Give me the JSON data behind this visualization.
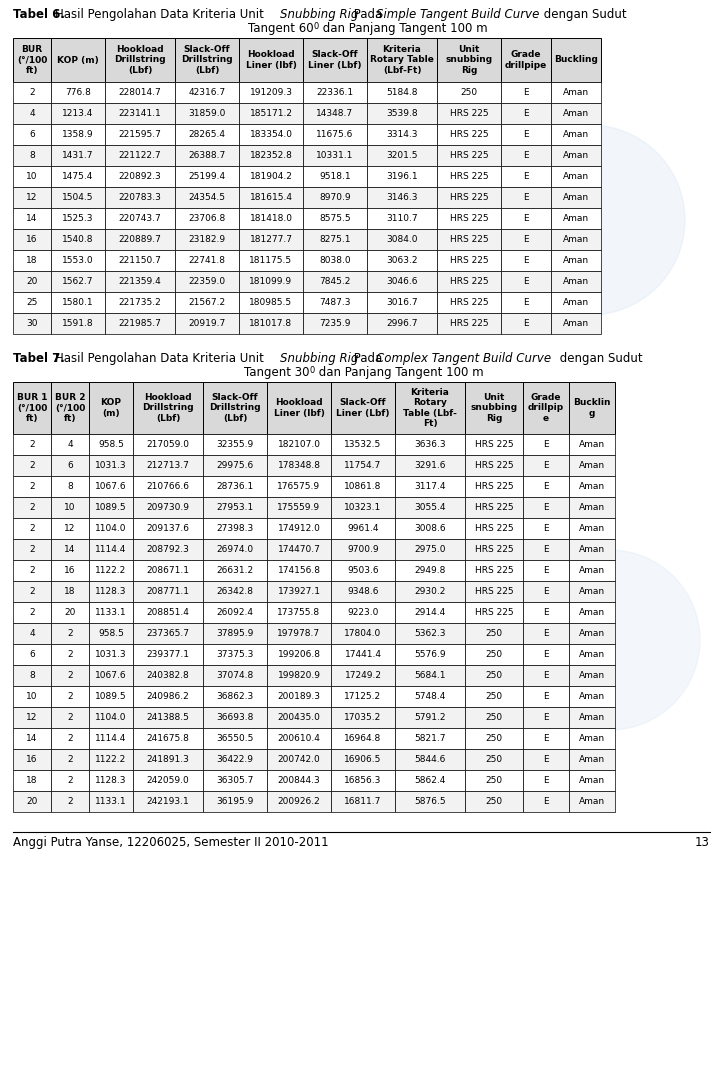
{
  "page_bg": "#ffffff",
  "table6_headers": [
    "BUR\n(°/100\nft)",
    "KOP (m)",
    "Hookload\nDrillstring\n(Lbf)",
    "Slack-Off\nDrillstring\n(Lbf)",
    "Hookload\nLiner (lbf)",
    "Slack-Off\nLiner (Lbf)",
    "Kriteria\nRotary Table\n(Lbf-Ft)",
    "Unit\nsnubbing\nRig",
    "Grade\ndrillpipe",
    "Buckling"
  ],
  "table6_data": [
    [
      "2",
      "776.8",
      "228014.7",
      "42316.7",
      "191209.3",
      "22336.1",
      "5184.8",
      "250",
      "E",
      "Aman"
    ],
    [
      "4",
      "1213.4",
      "223141.1",
      "31859.0",
      "185171.2",
      "14348.7",
      "3539.8",
      "HRS 225",
      "E",
      "Aman"
    ],
    [
      "6",
      "1358.9",
      "221595.7",
      "28265.4",
      "183354.0",
      "11675.6",
      "3314.3",
      "HRS 225",
      "E",
      "Aman"
    ],
    [
      "8",
      "1431.7",
      "221122.7",
      "26388.7",
      "182352.8",
      "10331.1",
      "3201.5",
      "HRS 225",
      "E",
      "Aman"
    ],
    [
      "10",
      "1475.4",
      "220892.3",
      "25199.4",
      "181904.2",
      "9518.1",
      "3196.1",
      "HRS 225",
      "E",
      "Aman"
    ],
    [
      "12",
      "1504.5",
      "220783.3",
      "24354.5",
      "181615.4",
      "8970.9",
      "3146.3",
      "HRS 225",
      "E",
      "Aman"
    ],
    [
      "14",
      "1525.3",
      "220743.7",
      "23706.8",
      "181418.0",
      "8575.5",
      "3110.7",
      "HRS 225",
      "E",
      "Aman"
    ],
    [
      "16",
      "1540.8",
      "220889.7",
      "23182.9",
      "181277.7",
      "8275.1",
      "3084.0",
      "HRS 225",
      "E",
      "Aman"
    ],
    [
      "18",
      "1553.0",
      "221150.7",
      "22741.8",
      "181175.5",
      "8038.0",
      "3063.2",
      "HRS 225",
      "E",
      "Aman"
    ],
    [
      "20",
      "1562.7",
      "221359.4",
      "22359.0",
      "181099.9",
      "7845.2",
      "3046.6",
      "HRS 225",
      "E",
      "Aman"
    ],
    [
      "25",
      "1580.1",
      "221735.2",
      "21567.2",
      "180985.5",
      "7487.3",
      "3016.7",
      "HRS 225",
      "E",
      "Aman"
    ],
    [
      "30",
      "1591.8",
      "221985.7",
      "20919.7",
      "181017.8",
      "7235.9",
      "2996.7",
      "HRS 225",
      "E",
      "Aman"
    ]
  ],
  "table6_col_widths": [
    38,
    54,
    70,
    64,
    64,
    64,
    70,
    64,
    50,
    50
  ],
  "table7_headers": [
    "BUR 1\n(°/100\nft)",
    "BUR 2\n(°/100\nft)",
    "KOP\n(m)",
    "Hookload\nDrillstring\n(Lbf)",
    "Slack-Off\nDrillstring\n(Lbf)",
    "Hookload\nLiner (lbf)",
    "Slack-Off\nLiner (Lbf)",
    "Kriteria\nRotary\nTable (Lbf-\nFt)",
    "Unit\nsnubbing\nRig",
    "Grade\ndrillpip\ne",
    "Bucklin\ng"
  ],
  "table7_data": [
    [
      "2",
      "4",
      "958.5",
      "217059.0",
      "32355.9",
      "182107.0",
      "13532.5",
      "3636.3",
      "HRS 225",
      "E",
      "Aman"
    ],
    [
      "2",
      "6",
      "1031.3",
      "212713.7",
      "29975.6",
      "178348.8",
      "11754.7",
      "3291.6",
      "HRS 225",
      "E",
      "Aman"
    ],
    [
      "2",
      "8",
      "1067.6",
      "210766.6",
      "28736.1",
      "176575.9",
      "10861.8",
      "3117.4",
      "HRS 225",
      "E",
      "Aman"
    ],
    [
      "2",
      "10",
      "1089.5",
      "209730.9",
      "27953.1",
      "175559.9",
      "10323.1",
      "3055.4",
      "HRS 225",
      "E",
      "Aman"
    ],
    [
      "2",
      "12",
      "1104.0",
      "209137.6",
      "27398.3",
      "174912.0",
      "9961.4",
      "3008.6",
      "HRS 225",
      "E",
      "Aman"
    ],
    [
      "2",
      "14",
      "1114.4",
      "208792.3",
      "26974.0",
      "174470.7",
      "9700.9",
      "2975.0",
      "HRS 225",
      "E",
      "Aman"
    ],
    [
      "2",
      "16",
      "1122.2",
      "208671.1",
      "26631.2",
      "174156.8",
      "9503.6",
      "2949.8",
      "HRS 225",
      "E",
      "Aman"
    ],
    [
      "2",
      "18",
      "1128.3",
      "208771.1",
      "26342.8",
      "173927.1",
      "9348.6",
      "2930.2",
      "HRS 225",
      "E",
      "Aman"
    ],
    [
      "2",
      "20",
      "1133.1",
      "208851.4",
      "26092.4",
      "173755.8",
      "9223.0",
      "2914.4",
      "HRS 225",
      "E",
      "Aman"
    ],
    [
      "4",
      "2",
      "958.5",
      "237365.7",
      "37895.9",
      "197978.7",
      "17804.0",
      "5362.3",
      "250",
      "E",
      "Aman"
    ],
    [
      "6",
      "2",
      "1031.3",
      "239377.1",
      "37375.3",
      "199206.8",
      "17441.4",
      "5576.9",
      "250",
      "E",
      "Aman"
    ],
    [
      "8",
      "2",
      "1067.6",
      "240382.8",
      "37074.8",
      "199820.9",
      "17249.2",
      "5684.1",
      "250",
      "E",
      "Aman"
    ],
    [
      "10",
      "2",
      "1089.5",
      "240986.2",
      "36862.3",
      "200189.3",
      "17125.2",
      "5748.4",
      "250",
      "E",
      "Aman"
    ],
    [
      "12",
      "2",
      "1104.0",
      "241388.5",
      "36693.8",
      "200435.0",
      "17035.2",
      "5791.2",
      "250",
      "E",
      "Aman"
    ],
    [
      "14",
      "2",
      "1114.4",
      "241675.8",
      "36550.5",
      "200610.4",
      "16964.8",
      "5821.7",
      "250",
      "E",
      "Aman"
    ],
    [
      "16",
      "2",
      "1122.2",
      "241891.3",
      "36422.9",
      "200742.0",
      "16906.5",
      "5844.6",
      "250",
      "E",
      "Aman"
    ],
    [
      "18",
      "2",
      "1128.3",
      "242059.0",
      "36305.7",
      "200844.3",
      "16856.3",
      "5862.4",
      "250",
      "E",
      "Aman"
    ],
    [
      "20",
      "2",
      "1133.1",
      "242193.1",
      "36195.9",
      "200926.2",
      "16811.7",
      "5876.5",
      "250",
      "E",
      "Aman"
    ]
  ],
  "table7_col_widths": [
    38,
    38,
    44,
    70,
    64,
    64,
    64,
    70,
    58,
    46,
    46
  ],
  "footer_text": "Anggi Putra Yanse, 12206025, Semester II 2010-2011",
  "page_number": "13",
  "header_bg": "#d9d9d9",
  "border_color": "#000000",
  "text_color": "#000000",
  "row_bg_even": "#ffffff",
  "row_bg_odd": "#f2f2f2"
}
